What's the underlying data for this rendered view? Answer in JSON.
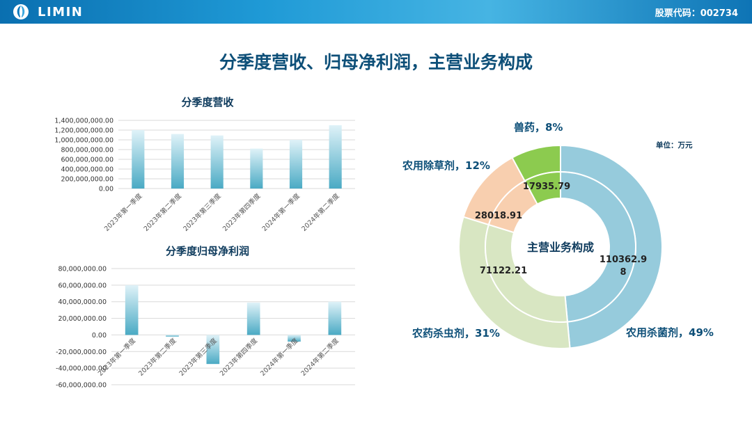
{
  "header": {
    "brand": "LIMIN",
    "logo_icon": "leaf-logo-icon",
    "stock_code": "股票代码：002734"
  },
  "main_title": "分季度营收、归母净利润，主营业务构成",
  "colors": {
    "bar_top": "#dff2f8",
    "bar_bottom": "#4aaac4",
    "donut_fungicide": "#96cbdc",
    "donut_insecticide": "#d8e6c2",
    "donut_herbicide": "#f8cfaf",
    "donut_veterinary": "#8ccb4f",
    "heading": "#0d4f78"
  },
  "chart_data": [
    {
      "type": "bar",
      "title": "分季度营收",
      "categories": [
        "2023年第一季度",
        "2023年第二季度",
        "2023年第三季度",
        "2023年第四季度",
        "2024年第一季度",
        "2024年第二季度"
      ],
      "values": [
        1200000000,
        1120000000,
        1090000000,
        820000000,
        1000000000,
        1300000000
      ],
      "ylim": [
        0,
        1400000000
      ],
      "yticks": [
        "1,400,000,000.00",
        "1,200,000,000.00",
        "1,000,000,000.00",
        "800,000,000.00",
        "600,000,000.00",
        "400,000,000.00",
        "200,000,000.00",
        "0.00"
      ],
      "xlabel": "",
      "ylabel": "",
      "grid": true
    },
    {
      "type": "bar",
      "title": "分季度归母净利润",
      "categories": [
        "2023年第一季度",
        "2023年第二季度",
        "2023年第三季度",
        "2023年第四季度",
        "2024年第一季度",
        "2024年第二季度"
      ],
      "values": [
        60000000,
        -2000000,
        -35000000,
        39000000,
        -8000000,
        40000000
      ],
      "ylim": [
        -60000000,
        80000000
      ],
      "yticks": [
        "80,000,000.00",
        "60,000,000.00",
        "40,000,000.00",
        "20,000,000.00",
        "0.00",
        "-20,000,000.00",
        "-40,000,000.00",
        "-60,000,000.00"
      ],
      "xlabel": "",
      "ylabel": "",
      "grid": true
    },
    {
      "type": "pie",
      "title": "主营业务构成",
      "unit": "单位：万元",
      "segments": [
        {
          "name": "农用杀菌剂",
          "value": 110362.98,
          "value_label": "110362.98",
          "percent_label": "农用杀菌剂，49%",
          "color": "#96cbdc"
        },
        {
          "name": "农药杀虫剂",
          "value": 71122.21,
          "value_label": "71122.21",
          "percent_label": "农药杀虫剂，31%",
          "color": "#d8e6c2"
        },
        {
          "name": "农用除草剂",
          "value": 28018.91,
          "value_label": "28018.91",
          "percent_label": "农用除草剂，12%",
          "color": "#f8cfaf"
        },
        {
          "name": "兽药",
          "value": 17935.79,
          "value_label": "17935.79",
          "percent_label": "兽药，8%",
          "color": "#8ccb4f"
        }
      ]
    }
  ]
}
